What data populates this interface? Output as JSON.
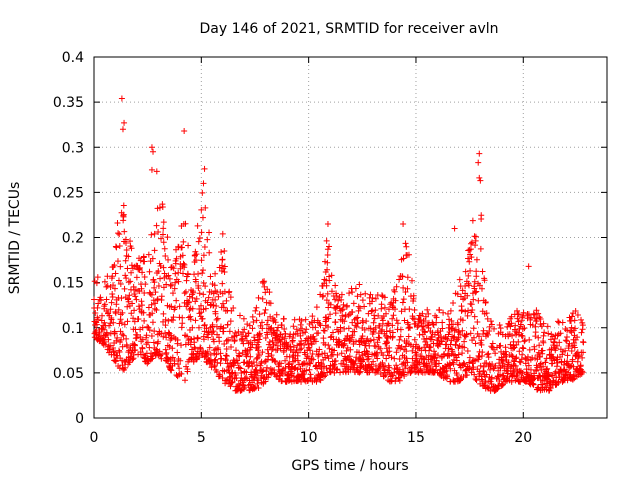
{
  "chart_data": {
    "type": "scatter",
    "title": "Day 146 of 2021, SRMTID for receiver avln",
    "xlabel": "GPS time / hours",
    "ylabel": "SRMTID / TECUs",
    "xlim": [
      0,
      23.9
    ],
    "ylim": [
      0,
      0.4
    ],
    "xticks": [
      0,
      5,
      10,
      15,
      20
    ],
    "yticks": [
      0,
      0.05,
      0.1,
      0.15,
      0.2,
      0.25,
      0.3,
      0.35,
      0.4
    ],
    "xtick_labels": [
      "0",
      "5",
      "10",
      "15",
      "20"
    ],
    "ytick_labels": [
      "0",
      "0.05",
      "0.1",
      "0.15",
      "0.2",
      "0.25",
      "0.3",
      "0.35",
      "0.4"
    ],
    "grid": true,
    "marker": "+",
    "series_color": "#ff0000",
    "series": [
      {
        "name": "SRMTID",
        "envelope_x": [
          0,
          0.5,
          1,
          1.3,
          1.6,
          2,
          2.5,
          2.9,
          3.3,
          3.7,
          4.2,
          4.6,
          5,
          5.3,
          5.7,
          6,
          6.5,
          7,
          7.5,
          8,
          8.3,
          8.7,
          9,
          9.5,
          10,
          10.5,
          10.9,
          11.3,
          11.8,
          12.3,
          12.8,
          13.3,
          13.8,
          14.2,
          14.6,
          15,
          15.5,
          16,
          16.5,
          17,
          17.5,
          17.9,
          18.3,
          18.7,
          19.2,
          19.7,
          20.2,
          20.7,
          21.2,
          21.7,
          22.2,
          22.8
        ],
        "envelope_low": [
          0.09,
          0.08,
          0.06,
          0.05,
          0.06,
          0.07,
          0.06,
          0.07,
          0.06,
          0.05,
          0.04,
          0.06,
          0.07,
          0.06,
          0.05,
          0.04,
          0.03,
          0.03,
          0.03,
          0.04,
          0.05,
          0.04,
          0.04,
          0.04,
          0.04,
          0.04,
          0.05,
          0.05,
          0.05,
          0.05,
          0.05,
          0.05,
          0.04,
          0.04,
          0.05,
          0.05,
          0.05,
          0.05,
          0.04,
          0.04,
          0.05,
          0.04,
          0.03,
          0.03,
          0.04,
          0.04,
          0.04,
          0.03,
          0.03,
          0.04,
          0.04,
          0.05
        ],
        "envelope_high": [
          0.17,
          0.15,
          0.2,
          0.26,
          0.2,
          0.18,
          0.19,
          0.3,
          0.22,
          0.17,
          0.24,
          0.16,
          0.26,
          0.22,
          0.15,
          0.2,
          0.12,
          0.11,
          0.12,
          0.17,
          0.12,
          0.11,
          0.11,
          0.11,
          0.11,
          0.13,
          0.21,
          0.14,
          0.14,
          0.15,
          0.14,
          0.14,
          0.13,
          0.16,
          0.21,
          0.12,
          0.12,
          0.12,
          0.12,
          0.15,
          0.2,
          0.28,
          0.12,
          0.1,
          0.11,
          0.12,
          0.12,
          0.12,
          0.1,
          0.11,
          0.12,
          0.12
        ],
        "outliers": [
          {
            "x": 1.3,
            "y": 0.354
          },
          {
            "x": 1.4,
            "y": 0.327
          },
          {
            "x": 1.35,
            "y": 0.32
          },
          {
            "x": 2.7,
            "y": 0.3
          },
          {
            "x": 2.75,
            "y": 0.295
          },
          {
            "x": 2.7,
            "y": 0.275
          },
          {
            "x": 4.2,
            "y": 0.318
          },
          {
            "x": 5.15,
            "y": 0.276
          },
          {
            "x": 5.1,
            "y": 0.26
          },
          {
            "x": 17.95,
            "y": 0.293
          },
          {
            "x": 17.9,
            "y": 0.283
          },
          {
            "x": 17.95,
            "y": 0.266
          },
          {
            "x": 18.0,
            "y": 0.263
          },
          {
            "x": 14.4,
            "y": 0.215
          },
          {
            "x": 10.9,
            "y": 0.215
          },
          {
            "x": 10.95,
            "y": 0.19
          },
          {
            "x": 16.8,
            "y": 0.21
          },
          {
            "x": 6.0,
            "y": 0.204
          },
          {
            "x": 20.25,
            "y": 0.168
          }
        ]
      }
    ]
  }
}
